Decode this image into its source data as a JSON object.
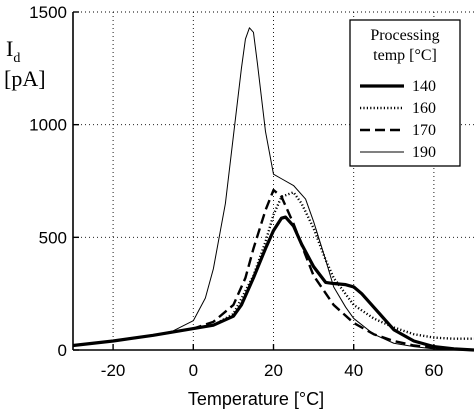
{
  "chart_data": {
    "type": "line",
    "xlabel": "Temperature [°C]",
    "ylabel": {
      "main": "I",
      "subscript": "d",
      "unit": "[pA]"
    },
    "xlim": [
      -30,
      70
    ],
    "ylim": [
      0,
      1500
    ],
    "xticks": [
      -20,
      0,
      20,
      40,
      60
    ],
    "yticks": [
      0,
      500,
      1000,
      1500
    ],
    "grid": true,
    "legend": {
      "title_line1": "Processing",
      "title_line2": "temp [°C]",
      "placement": "top-right"
    },
    "series": [
      {
        "name": "140",
        "style": "solid-thick",
        "x": [
          -30,
          -20,
          -10,
          0,
          5,
          10,
          12,
          15,
          18,
          20,
          22,
          23,
          25,
          27,
          30,
          33,
          35,
          38,
          40,
          42,
          45,
          48,
          50,
          55,
          60,
          65,
          70
        ],
        "y": [
          20,
          40,
          65,
          95,
          110,
          150,
          200,
          320,
          450,
          530,
          585,
          590,
          550,
          470,
          370,
          300,
          295,
          290,
          280,
          250,
          190,
          130,
          90,
          40,
          15,
          5,
          0
        ]
      },
      {
        "name": "160",
        "style": "dotted",
        "x": [
          -30,
          -20,
          -10,
          0,
          5,
          10,
          15,
          18,
          20,
          22,
          25,
          27,
          30,
          33,
          35,
          40,
          45,
          50,
          55,
          60,
          65,
          70
        ],
        "y": [
          20,
          40,
          65,
          95,
          110,
          160,
          330,
          480,
          600,
          680,
          700,
          650,
          540,
          400,
          320,
          200,
          140,
          100,
          70,
          55,
          50,
          50
        ]
      },
      {
        "name": "170",
        "style": "dashed",
        "x": [
          -30,
          -20,
          -10,
          0,
          5,
          10,
          13,
          15,
          18,
          20,
          22,
          25,
          28,
          30,
          35,
          40,
          45,
          50,
          55,
          60,
          65,
          70
        ],
        "y": [
          20,
          40,
          65,
          95,
          125,
          200,
          320,
          450,
          620,
          710,
          680,
          560,
          420,
          330,
          200,
          120,
          70,
          40,
          20,
          10,
          5,
          0
        ]
      },
      {
        "name": "190",
        "style": "solid-thin",
        "x": [
          -30,
          -20,
          -10,
          -5,
          0,
          3,
          5,
          8,
          10,
          12,
          13,
          14,
          15,
          16,
          18,
          20,
          22,
          25,
          28,
          30,
          33,
          35,
          38,
          40,
          45,
          50,
          55,
          60,
          65,
          70
        ],
        "y": [
          20,
          40,
          65,
          85,
          130,
          230,
          360,
          650,
          950,
          1250,
          1380,
          1430,
          1410,
          1270,
          970,
          780,
          760,
          730,
          670,
          570,
          400,
          280,
          190,
          140,
          70,
          30,
          15,
          5,
          2,
          0
        ]
      }
    ]
  }
}
